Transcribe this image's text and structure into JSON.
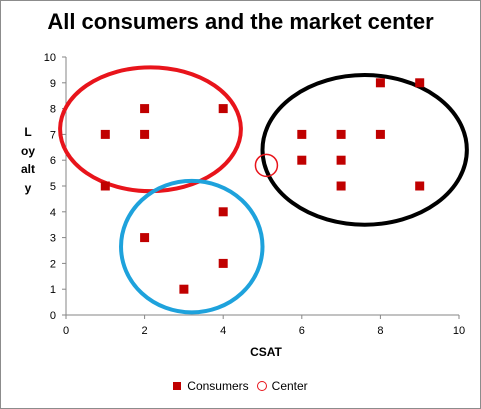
{
  "chart_data": {
    "type": "scatter",
    "title": "All consumers and the market center",
    "xlabel": "CSAT",
    "ylabel": "Loyalty",
    "xlim": [
      0,
      10
    ],
    "ylim": [
      0,
      10
    ],
    "x_ticks": [
      "0",
      "2",
      "4",
      "6",
      "8",
      "10"
    ],
    "y_ticks": [
      "0",
      "1",
      "2",
      "3",
      "4",
      "5",
      "6",
      "7",
      "8",
      "9",
      "10"
    ],
    "grid": false,
    "legend_position": "bottom",
    "series": [
      {
        "name": "Consumers",
        "marker": "square",
        "color": "#c00000",
        "points": [
          [
            1,
            7
          ],
          [
            2,
            8
          ],
          [
            2,
            7
          ],
          [
            4,
            8
          ],
          [
            1,
            5
          ],
          [
            2,
            3
          ],
          [
            4,
            4
          ],
          [
            4,
            2
          ],
          [
            3,
            1
          ],
          [
            6,
            7
          ],
          [
            7,
            7
          ],
          [
            8,
            7
          ],
          [
            8,
            9
          ],
          [
            9,
            9
          ],
          [
            6,
            6
          ],
          [
            7,
            6
          ],
          [
            7,
            5
          ],
          [
            9,
            5
          ]
        ]
      },
      {
        "name": "Center",
        "marker": "circle",
        "color": "#e8141b",
        "points": [
          [
            5.1,
            5.8
          ]
        ]
      }
    ],
    "cluster_outlines": [
      {
        "color": "#e8141b",
        "center": [
          2.15,
          7.2
        ],
        "radius_x": 2.3,
        "radius_y": 2.4
      },
      {
        "color": "#1ea2dc",
        "center": [
          3.2,
          2.65
        ],
        "radius_x": 1.8,
        "radius_y": 2.55
      },
      {
        "color": "#000000",
        "center": [
          7.6,
          6.4
        ],
        "radius_x": 2.6,
        "radius_y": 2.9
      }
    ]
  }
}
